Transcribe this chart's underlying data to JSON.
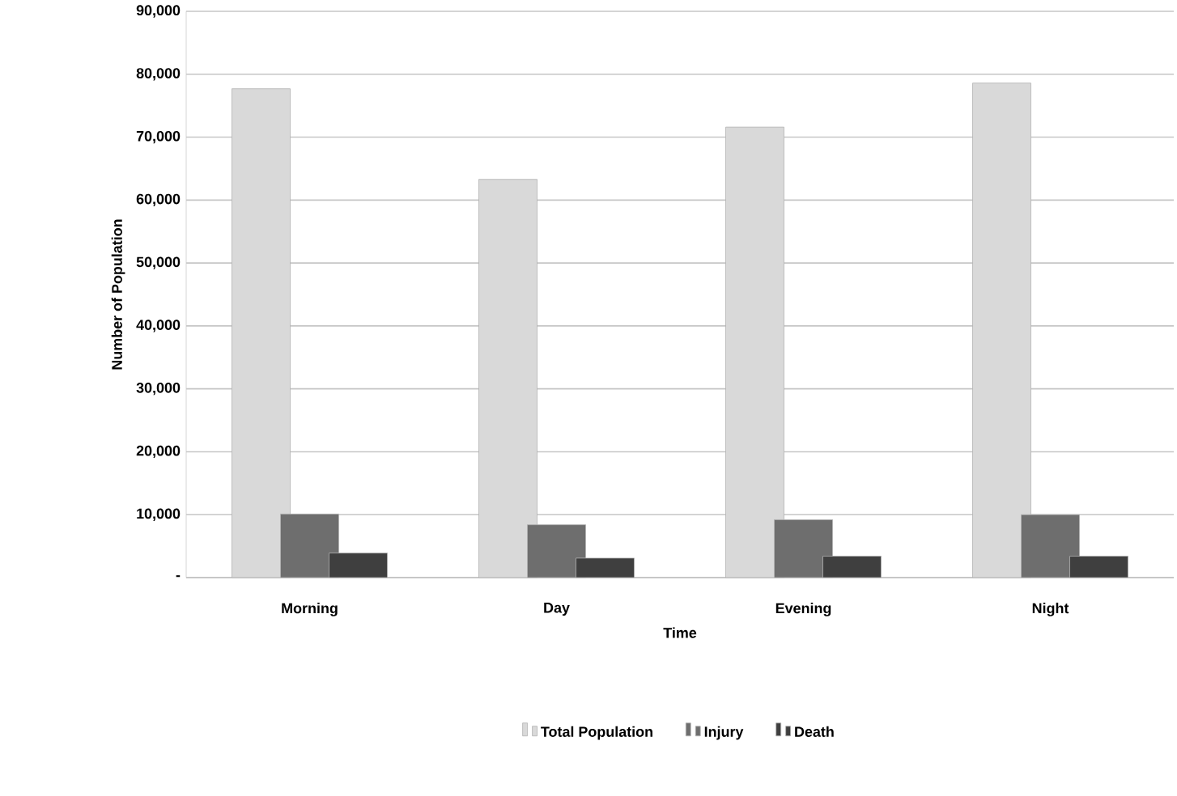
{
  "chart_data": {
    "type": "bar",
    "xlabel": "Time",
    "ylabel": "Number of Population",
    "categories": [
      "Morning",
      "Day",
      "Evening",
      "Night"
    ],
    "series": [
      {
        "name": "Total Population",
        "color": "#d9d9d9",
        "values": [
          77700,
          63300,
          71600,
          78600
        ]
      },
      {
        "name": "Injury",
        "color": "#6e6e6e",
        "values": [
          10100,
          8400,
          9200,
          10000
        ]
      },
      {
        "name": "Death",
        "color": "#3f3f3f",
        "values": [
          3900,
          3100,
          3400,
          3400
        ]
      }
    ],
    "ylim": [
      0,
      90000
    ],
    "yticks": [
      {
        "value": 0,
        "label": "-"
      },
      {
        "value": 10000,
        "label": "10,000"
      },
      {
        "value": 20000,
        "label": "20,000"
      },
      {
        "value": 30000,
        "label": "30,000"
      },
      {
        "value": 40000,
        "label": "40,000"
      },
      {
        "value": 50000,
        "label": "50,000"
      },
      {
        "value": 60000,
        "label": "60,000"
      },
      {
        "value": 70000,
        "label": "70,000"
      },
      {
        "value": 80000,
        "label": "80,000"
      },
      {
        "value": 90000,
        "label": "90,000"
      }
    ],
    "grid": "y",
    "legend": "bottom"
  }
}
